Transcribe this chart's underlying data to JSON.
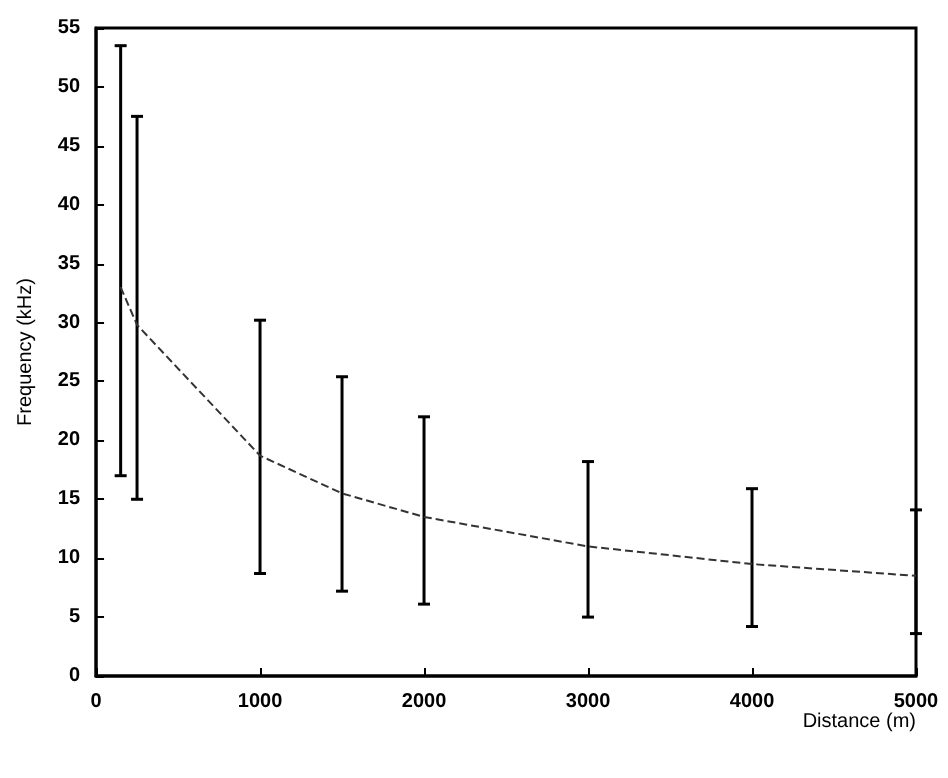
{
  "chart_data": {
    "type": "line",
    "xlabel": "Distance (m)",
    "ylabel": "Frequency (kHz)",
    "x": [
      150,
      250,
      1000,
      1500,
      2000,
      3000,
      4000,
      5000
    ],
    "series": [
      {
        "color": "#333333",
        "values": [
          33,
          29.8,
          18.7,
          15.5,
          13.5,
          11,
          9.5,
          8.5
        ],
        "errors": [
          [
            17,
            53.5
          ],
          [
            15,
            47.5
          ],
          [
            8.7,
            30.2
          ],
          [
            7.2,
            25.4
          ],
          [
            6.1,
            22
          ],
          [
            5,
            18.2
          ],
          [
            4.2,
            15.9
          ],
          [
            3.6,
            14.1
          ]
        ]
      }
    ],
    "xlim": [
      0,
      5000
    ],
    "xticks": [
      0,
      1000,
      2000,
      3000,
      4000,
      5000
    ],
    "ylim": [
      0,
      55
    ],
    "yticks": [
      0,
      5,
      10,
      15,
      20,
      25,
      30,
      35,
      40,
      45,
      50,
      55
    ],
    "line_style": "dashed",
    "marker": "none"
  }
}
